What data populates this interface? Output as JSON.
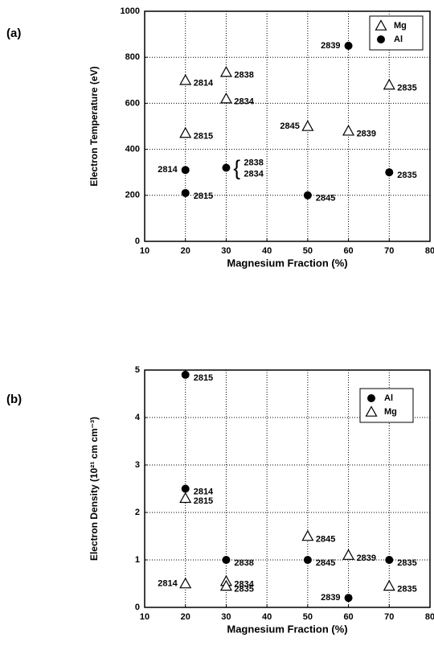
{
  "chart_data": [
    {
      "type": "scatter",
      "panel_label": "(a)",
      "x_label": "Magnesium Fraction (%)",
      "y_label": "Electron Temperature (eV)",
      "xlim": [
        10,
        80
      ],
      "xticks": [
        10,
        20,
        30,
        40,
        50,
        60,
        70,
        80
      ],
      "ylim": [
        0,
        1000
      ],
      "yticks": [
        0,
        200,
        400,
        600,
        800,
        1000
      ],
      "grid": true,
      "legend": "upper right",
      "series": [
        {
          "name": "Mg",
          "marker": "triangle",
          "color": "#000000",
          "x": [
            20,
            20,
            30,
            30,
            50,
            60,
            70
          ],
          "values": [
            700,
            470,
            735,
            620,
            500,
            480,
            680
          ],
          "labels": [
            [
              "2814"
            ],
            [
              "2815"
            ],
            [
              "2838"
            ],
            [
              "2834"
            ],
            [
              "2845"
            ],
            [
              "2839"
            ],
            [
              "2835"
            ]
          ]
        },
        {
          "name": "Al",
          "marker": "circle",
          "color": "#000000",
          "x": [
            20,
            20,
            30,
            50,
            60,
            70
          ],
          "values": [
            310,
            210,
            320,
            200,
            850,
            300
          ],
          "labels": [
            [
              "2814"
            ],
            [
              "2815"
            ],
            [
              "2838",
              "2834"
            ],
            [
              "2845"
            ],
            [
              "2839"
            ],
            [
              "2835"
            ]
          ]
        }
      ]
    },
    {
      "type": "scatter",
      "panel_label": "(b)",
      "x_label": "Magnesium Fraction (%)",
      "y_label": "Electron Density (10²¹ cm cm⁻³)",
      "xlim": [
        10,
        80
      ],
      "xticks": [
        10,
        20,
        30,
        40,
        50,
        60,
        70,
        80
      ],
      "ylim": [
        0,
        5
      ],
      "yticks": [
        0,
        1,
        2,
        3,
        4,
        5
      ],
      "grid": true,
      "legend": "upper right",
      "series": [
        {
          "name": "Al",
          "marker": "circle",
          "color": "#000000",
          "x": [
            20,
            20,
            30,
            50,
            60,
            70
          ],
          "values": [
            4.9,
            2.5,
            1.0,
            1.0,
            0.2,
            1.0
          ],
          "labels": [
            [
              "2815"
            ],
            [
              "2814"
            ],
            [
              "2838"
            ],
            [
              "2845"
            ],
            [
              "2839"
            ],
            [
              "2835"
            ]
          ]
        },
        {
          "name": "Mg",
          "marker": "triangle",
          "color": "#000000",
          "x": [
            20,
            20,
            30,
            30,
            50,
            60,
            70
          ],
          "values": [
            2.3,
            0.5,
            0.55,
            0.45,
            1.5,
            1.1,
            0.45
          ],
          "labels": [
            [
              "2815"
            ],
            [
              "2814"
            ],
            [
              "2834"
            ],
            [
              "2835"
            ],
            [
              "2845"
            ],
            [
              "2839"
            ],
            [
              "2835"
            ]
          ]
        }
      ]
    }
  ]
}
